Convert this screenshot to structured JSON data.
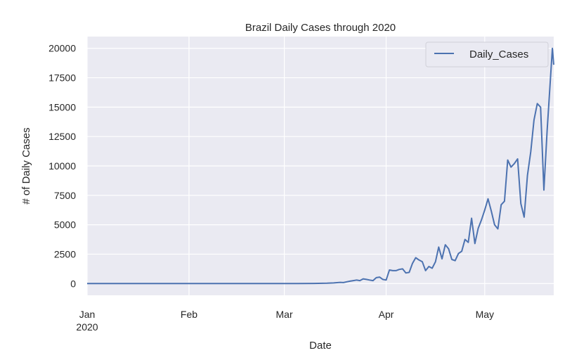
{
  "chart_data": {
    "type": "line",
    "title": "Brazil Daily Cases through 2020",
    "xlabel": "Date",
    "ylabel": "# of Daily Cases",
    "xlim": [
      "2020-01-01",
      "2020-05-22"
    ],
    "ylim": [
      -1000,
      21000
    ],
    "x_ticks": [
      {
        "date": "2020-01-01",
        "label": "Jan",
        "sublabel": "2020"
      },
      {
        "date": "2020-02-01",
        "label": "Feb",
        "sublabel": ""
      },
      {
        "date": "2020-03-01",
        "label": "Mar",
        "sublabel": ""
      },
      {
        "date": "2020-04-01",
        "label": "Apr",
        "sublabel": ""
      },
      {
        "date": "2020-05-01",
        "label": "May",
        "sublabel": ""
      }
    ],
    "y_ticks": [
      0,
      2500,
      5000,
      7500,
      10000,
      12500,
      15000,
      17500,
      20000
    ],
    "grid": true,
    "legend": {
      "position": "top-right",
      "entries": [
        "Daily_Cases"
      ]
    },
    "colors": {
      "line": "#4c72b0",
      "plot_bg": "#eaeaf2",
      "grid": "#ffffff"
    },
    "series": [
      {
        "name": "Daily_Cases",
        "points": [
          [
            "2020-01-01",
            0
          ],
          [
            "2020-02-25",
            1
          ],
          [
            "2020-03-05",
            5
          ],
          [
            "2020-03-10",
            10
          ],
          [
            "2020-03-14",
            30
          ],
          [
            "2020-03-16",
            50
          ],
          [
            "2020-03-18",
            100
          ],
          [
            "2020-03-19",
            80
          ],
          [
            "2020-03-20",
            150
          ],
          [
            "2020-03-21",
            200
          ],
          [
            "2020-03-22",
            250
          ],
          [
            "2020-03-23",
            300
          ],
          [
            "2020-03-24",
            250
          ],
          [
            "2020-03-25",
            400
          ],
          [
            "2020-03-26",
            350
          ],
          [
            "2020-03-27",
            300
          ],
          [
            "2020-03-28",
            250
          ],
          [
            "2020-03-29",
            500
          ],
          [
            "2020-03-30",
            550
          ],
          [
            "2020-03-31",
            350
          ],
          [
            "2020-04-01",
            300
          ],
          [
            "2020-04-02",
            1150
          ],
          [
            "2020-04-03",
            1100
          ],
          [
            "2020-04-04",
            1100
          ],
          [
            "2020-04-05",
            1200
          ],
          [
            "2020-04-06",
            1250
          ],
          [
            "2020-04-07",
            900
          ],
          [
            "2020-04-08",
            950
          ],
          [
            "2020-04-09",
            1700
          ],
          [
            "2020-04-10",
            2200
          ],
          [
            "2020-04-11",
            2000
          ],
          [
            "2020-04-12",
            1850
          ],
          [
            "2020-04-13",
            1100
          ],
          [
            "2020-04-14",
            1450
          ],
          [
            "2020-04-15",
            1300
          ],
          [
            "2020-04-16",
            1850
          ],
          [
            "2020-04-17",
            3100
          ],
          [
            "2020-04-18",
            2100
          ],
          [
            "2020-04-19",
            3300
          ],
          [
            "2020-04-20",
            2950
          ],
          [
            "2020-04-21",
            2050
          ],
          [
            "2020-04-22",
            1950
          ],
          [
            "2020-04-23",
            2550
          ],
          [
            "2020-04-24",
            2750
          ],
          [
            "2020-04-25",
            3750
          ],
          [
            "2020-04-26",
            3500
          ],
          [
            "2020-04-27",
            5550
          ],
          [
            "2020-04-28",
            3400
          ],
          [
            "2020-04-29",
            4700
          ],
          [
            "2020-04-30",
            5400
          ],
          [
            "2020-05-01",
            6250
          ],
          [
            "2020-05-02",
            7200
          ],
          [
            "2020-05-03",
            6150
          ],
          [
            "2020-05-04",
            5000
          ],
          [
            "2020-05-05",
            4650
          ],
          [
            "2020-05-06",
            6700
          ],
          [
            "2020-05-07",
            7000
          ],
          [
            "2020-05-08",
            10500
          ],
          [
            "2020-05-09",
            9900
          ],
          [
            "2020-05-10",
            10200
          ],
          [
            "2020-05-11",
            10600
          ],
          [
            "2020-05-12",
            6800
          ],
          [
            "2020-05-13",
            5650
          ],
          [
            "2020-05-14",
            9200
          ],
          [
            "2020-05-15",
            11200
          ],
          [
            "2020-05-16",
            13900
          ],
          [
            "2020-05-17",
            15300
          ],
          [
            "2020-05-18",
            15000
          ],
          [
            "2020-05-19",
            7950
          ],
          [
            "2020-05-20",
            13000
          ],
          [
            "2020-05-21",
            17400
          ],
          [
            "2020-05-21.6",
            20000
          ],
          [
            "2020-05-22",
            18600
          ]
        ]
      }
    ]
  }
}
